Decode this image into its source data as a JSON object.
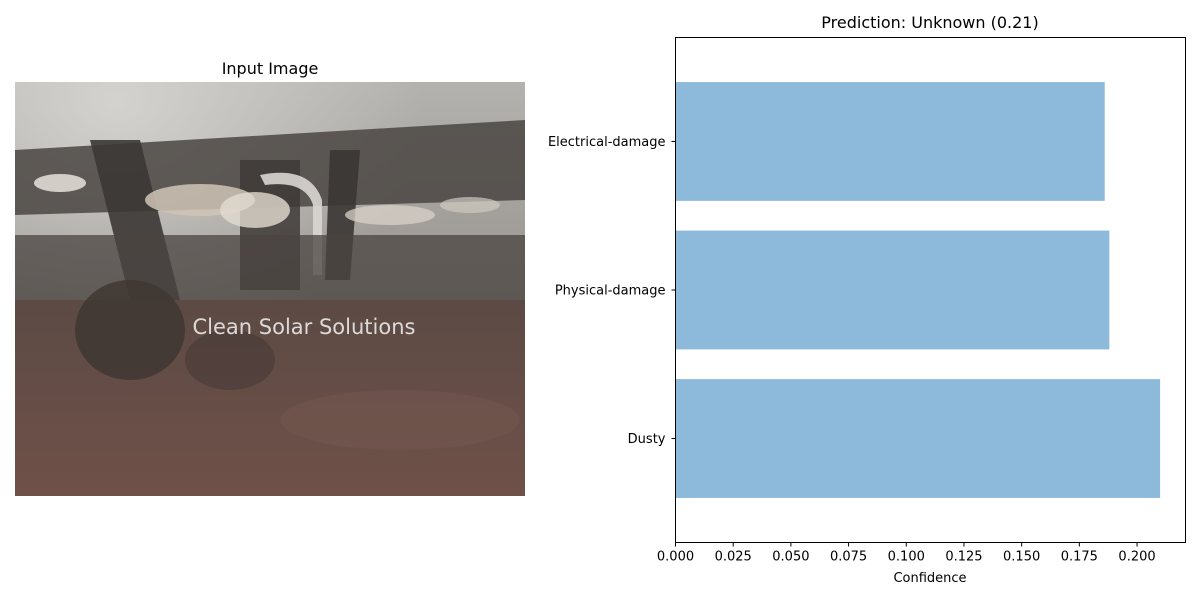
{
  "image_panel": {
    "title": "Input Image",
    "watermark": "Clean Solar Solutions"
  },
  "chart_data": {
    "type": "bar",
    "orientation": "horizontal",
    "title": "Prediction: Unknown (0.21)",
    "xlabel": "Confidence",
    "ylabel": "",
    "categories": [
      "Dusty",
      "Physical-damage",
      "Electrical-damage"
    ],
    "values": [
      0.21,
      0.188,
      0.186
    ],
    "xlim": [
      0,
      0.221
    ],
    "xticks": [
      "0.000",
      "0.025",
      "0.050",
      "0.075",
      "0.100",
      "0.125",
      "0.150",
      "0.175",
      "0.200"
    ],
    "bar_color": "#8db9da",
    "grid": false
  }
}
